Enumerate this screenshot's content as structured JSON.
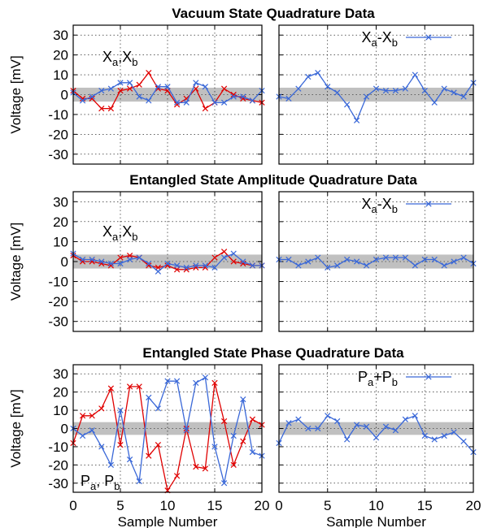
{
  "chart_data": [
    {
      "type": "line",
      "title": "Vacuum State Quadrature Data",
      "ylabel": "Voltage [mV]",
      "xlabel": "",
      "ylim": [
        -35,
        35
      ],
      "xlim": [
        0,
        20
      ],
      "grid": true,
      "band": [
        -3.5,
        3.5
      ],
      "band_color": "#c0c0c0",
      "legend_text": {
        "base1": "X",
        "sub1": "a",
        "sep": ",",
        "base2": "X",
        "sub2": "b"
      },
      "legend_style": "inline",
      "x": [
        0,
        1,
        2,
        3,
        4,
        5,
        6,
        7,
        8,
        9,
        10,
        11,
        12,
        13,
        14,
        15,
        16,
        17,
        18,
        19,
        20
      ],
      "series": [
        {
          "color": "#e00000",
          "marker": "x",
          "values": [
            2,
            -2,
            -2,
            -7,
            -7,
            2,
            3,
            5,
            11,
            3,
            2,
            -5,
            -2,
            3,
            -7,
            -4,
            3,
            0,
            -2,
            -3,
            -4
          ]
        },
        {
          "color": "#3a68d8",
          "marker": "x",
          "values": [
            1,
            -3,
            -1,
            2,
            3,
            6,
            6,
            -1,
            -3,
            4,
            4,
            -4,
            -4,
            6,
            4,
            -4,
            -4,
            -1,
            -1,
            -3,
            2
          ]
        }
      ]
    },
    {
      "type": "line",
      "title": "",
      "ylabel": "",
      "xlabel": "",
      "ylim": [
        -35,
        35
      ],
      "xlim": [
        0,
        20
      ],
      "grid": true,
      "band": [
        -3.5,
        3.5
      ],
      "band_color": "#c0c0c0",
      "legend_text": {
        "base1": "X",
        "sub1": "a",
        "sep": "-",
        "base2": "X",
        "sub2": "b"
      },
      "legend_style": "sample",
      "x": [
        0,
        1,
        2,
        3,
        4,
        5,
        6,
        7,
        8,
        9,
        10,
        11,
        12,
        13,
        14,
        15,
        16,
        17,
        18,
        19,
        20
      ],
      "series": [
        {
          "color": "#3a68d8",
          "marker": "x",
          "values": [
            -1,
            -2,
            3,
            9,
            11,
            4,
            1,
            -5,
            -13,
            -1,
            3,
            2,
            2,
            3,
            10,
            2,
            -4,
            3,
            1,
            -1,
            6
          ]
        }
      ]
    },
    {
      "type": "line",
      "title": "Entangled State Amplitude Quadrature Data",
      "ylabel": "Voltage [mV]",
      "xlabel": "",
      "ylim": [
        -35,
        35
      ],
      "xlim": [
        0,
        20
      ],
      "grid": true,
      "band": [
        -3.5,
        3.5
      ],
      "band_color": "#c0c0c0",
      "legend_text": {
        "base1": "X",
        "sub1": "a",
        "sep": ",",
        "base2": "X",
        "sub2": "b"
      },
      "legend_style": "inline",
      "x": [
        0,
        1,
        2,
        3,
        4,
        5,
        6,
        7,
        8,
        9,
        10,
        11,
        12,
        13,
        14,
        15,
        16,
        17,
        18,
        19,
        20
      ],
      "series": [
        {
          "color": "#e00000",
          "marker": "x",
          "values": [
            3,
            0,
            0,
            -1,
            -2,
            2,
            3,
            2,
            -2,
            -3,
            -2,
            -4,
            -4,
            -3,
            -3,
            2,
            5,
            0,
            -1,
            -2,
            -2
          ]
        },
        {
          "color": "#3a68d8",
          "marker": "x",
          "values": [
            4,
            1,
            1,
            0,
            -1,
            -1,
            1,
            2,
            -1,
            -5,
            -1,
            -2,
            -3,
            -2,
            -2,
            -3,
            2,
            4,
            0,
            -2,
            -2
          ]
        }
      ]
    },
    {
      "type": "line",
      "title": "",
      "ylabel": "",
      "xlabel": "",
      "ylim": [
        -35,
        35
      ],
      "xlim": [
        0,
        20
      ],
      "grid": true,
      "band": [
        -3.5,
        3.5
      ],
      "band_color": "#c0c0c0",
      "legend_text": {
        "base1": "X",
        "sub1": "a",
        "sep": "-",
        "base2": "X",
        "sub2": "b"
      },
      "legend_style": "sample",
      "x": [
        0,
        1,
        2,
        3,
        4,
        5,
        6,
        7,
        8,
        9,
        10,
        11,
        12,
        13,
        14,
        15,
        16,
        17,
        18,
        19,
        20
      ],
      "series": [
        {
          "color": "#3a68d8",
          "marker": "x",
          "values": [
            1,
            1,
            -2,
            0,
            2,
            -3,
            -2,
            1,
            0,
            -2,
            1,
            2,
            2,
            2,
            -2,
            1,
            1,
            -2,
            0,
            2,
            -1
          ]
        }
      ]
    },
    {
      "type": "line",
      "title": "Entangled State Phase Quadrature Data",
      "ylabel": "Voltage [mV]",
      "xlabel": "Sample Number",
      "ylim": [
        -35,
        35
      ],
      "xlim": [
        0,
        20
      ],
      "grid": true,
      "band": [
        -3.5,
        3.5
      ],
      "band_color": "#c0c0c0",
      "legend_text": {
        "base1": "P",
        "sub1": "a",
        "sep": ", ",
        "base2": "P",
        "sub2": "b"
      },
      "legend_style": "inline",
      "x": [
        0,
        1,
        2,
        3,
        4,
        5,
        6,
        7,
        8,
        9,
        10,
        11,
        12,
        13,
        14,
        15,
        16,
        17,
        18,
        19,
        20
      ],
      "series": [
        {
          "color": "#e00000",
          "marker": "x",
          "values": [
            -8,
            7,
            7,
            11,
            22,
            -9,
            23,
            23,
            -15,
            -9,
            -34,
            -26,
            0,
            -21,
            -22,
            25,
            4,
            -20,
            -7,
            5,
            2
          ]
        },
        {
          "color": "#3a68d8",
          "marker": "x",
          "values": [
            0,
            -4,
            -1,
            -10,
            -20,
            10,
            -17,
            -29,
            17,
            11,
            26,
            26,
            -1,
            25,
            28,
            -10,
            -30,
            -4,
            16,
            -13,
            -15
          ]
        }
      ]
    },
    {
      "type": "line",
      "title": "",
      "ylabel": "",
      "xlabel": "Sample Number",
      "ylim": [
        -35,
        35
      ],
      "xlim": [
        0,
        20
      ],
      "grid": true,
      "band": [
        -3.5,
        3.5
      ],
      "band_color": "#c0c0c0",
      "legend_text": {
        "base1": "P",
        "sub1": "a",
        "sep": "+",
        "base2": "P",
        "sub2": "b"
      },
      "legend_style": "sample",
      "x": [
        0,
        1,
        2,
        3,
        4,
        5,
        6,
        7,
        8,
        9,
        10,
        11,
        12,
        13,
        14,
        15,
        16,
        17,
        18,
        19,
        20
      ],
      "series": [
        {
          "color": "#3a68d8",
          "marker": "x",
          "values": [
            -8,
            3,
            5,
            0,
            0,
            7,
            4,
            -6,
            2,
            1,
            -5,
            1,
            -1,
            5,
            7,
            -4,
            -6,
            -4,
            -2,
            -7,
            -13
          ]
        }
      ]
    }
  ],
  "axes": {
    "yticks": [
      "30",
      "20",
      "10",
      "0",
      "-10",
      "-20",
      "-30"
    ],
    "xticks": [
      "0",
      "5",
      "10",
      "15",
      "20"
    ]
  }
}
